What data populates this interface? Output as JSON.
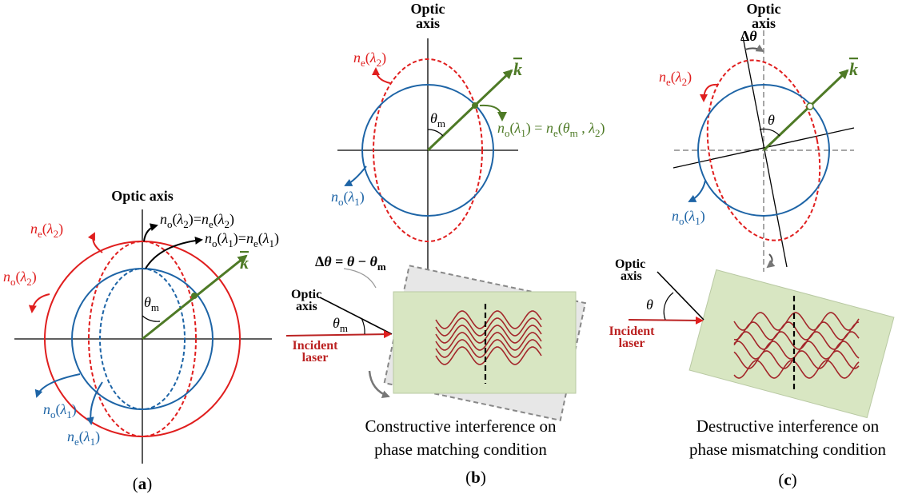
{
  "panel_a": {
    "optic_axis": "Optic axis",
    "ne_l2": [
      "n",
      "e",
      "(",
      "λ",
      "2",
      ")"
    ],
    "no_l2": [
      "n",
      "o",
      "(",
      "λ",
      "2",
      ")"
    ],
    "eq_l2": [
      "n",
      "o",
      "(",
      "λ",
      "2",
      ")=",
      "n",
      "e",
      "(",
      "λ",
      "2",
      ")"
    ],
    "eq_l1": [
      "n",
      "o",
      "(",
      "λ",
      "1",
      ")=",
      "n",
      "e",
      "(",
      "λ",
      "1",
      ")"
    ],
    "k": "k",
    "theta_m": [
      "θ",
      "m"
    ],
    "no_l1": [
      "n",
      "o",
      "(",
      "λ",
      "1",
      ")"
    ],
    "ne_l1": [
      "n",
      "e",
      "(",
      "λ",
      "1",
      ")"
    ],
    "label": [
      "(",
      "a",
      ")"
    ]
  },
  "panel_b": {
    "optic": "Optic",
    "axis": "axis",
    "ne_l2": [
      "n",
      "e",
      "(",
      "λ",
      "2",
      ")"
    ],
    "k": "k",
    "theta_m": [
      "θ",
      "m"
    ],
    "match_eq": [
      "n",
      "o",
      "(",
      "λ",
      "1",
      ") = ",
      "n",
      "e",
      "(",
      "θ",
      "m",
      " , ",
      "λ",
      "2",
      ")"
    ],
    "no_l1": [
      "n",
      "o",
      "(",
      "λ",
      "1",
      ")"
    ],
    "delta_eq": [
      "Δ",
      "θ",
      " = ",
      "θ",
      " − ",
      "θ",
      "m"
    ],
    "crystal_optic": "Optic",
    "crystal_axis": "axis",
    "crystal_theta_m": [
      "θ",
      "m"
    ],
    "incident": "Incident",
    "laser": "laser",
    "caption": [
      "Constructive interference on",
      "phase matching condition"
    ],
    "label": [
      "(",
      "b",
      ")"
    ]
  },
  "panel_c": {
    "optic": "Optic",
    "axis": "axis",
    "delta_theta": [
      "Δ",
      "θ"
    ],
    "ne_l2": [
      "n",
      "e",
      "(",
      "λ",
      "2",
      ")"
    ],
    "k": "k",
    "theta": "θ",
    "no_l1": [
      "n",
      "o",
      "(",
      "λ",
      "1",
      ")"
    ],
    "crystal_optic": "Optic",
    "crystal_axis": "axis",
    "crystal_theta": "θ",
    "incident": "Incident",
    "laser": "laser",
    "caption": [
      "Destructive interference on",
      "phase mismatching condition"
    ],
    "label": [
      "(",
      "c",
      ")"
    ]
  }
}
